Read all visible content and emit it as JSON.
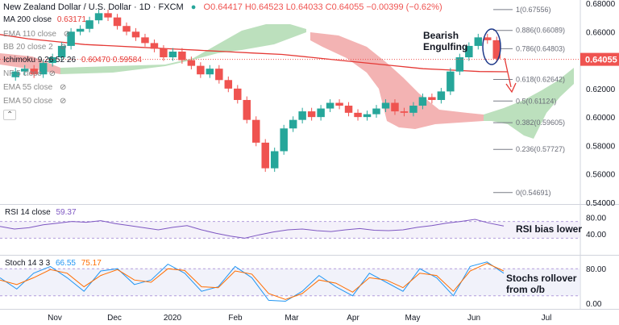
{
  "header": {
    "symbol": "New Zealand Dollar / U.S. Dollar · 1D · FXCM",
    "open": "O0.64417",
    "high": "H0.64523",
    "low": "L0.64033",
    "close": "C0.64055",
    "change": "−0.00399 (−0.62%)"
  },
  "indicators": [
    {
      "name": "MA 200 close",
      "value": "0.63171",
      "color": "#e53935",
      "hidden": false
    },
    {
      "name": "EMA 110 close",
      "value": "",
      "color": "#999999",
      "hidden": true
    },
    {
      "name": "BB 20 close 2",
      "value": "",
      "color": "#999999",
      "hidden": true
    },
    {
      "name": "Ichimoku 9 26 52 26",
      "value": "0.60470  0.59584",
      "color": "#333333",
      "hidden": false
    },
    {
      "name": "NF 5 close",
      "value": "",
      "color": "#999999",
      "hidden": true
    },
    {
      "name": "EMA 55 close",
      "value": "",
      "color": "#999999",
      "hidden": true
    },
    {
      "name": "EMA 50 close",
      "value": "",
      "color": "#999999",
      "hidden": true
    }
  ],
  "price_axis": {
    "ticks": [
      "0.68000",
      "0.66000",
      "0.64000",
      "0.62000",
      "0.60000",
      "0.58000",
      "0.56000",
      "0.54000"
    ],
    "current": "0.64055"
  },
  "fib_levels": [
    {
      "label": "1(0.67556)",
      "value": 0.67556
    },
    {
      "label": "0.886(0.66089)",
      "value": 0.66089
    },
    {
      "label": "0.786(0.64803)",
      "value": 0.64803
    },
    {
      "label": "0.618(0.62642)",
      "value": 0.62642
    },
    {
      "label": "0.5(0.61124)",
      "value": 0.61124
    },
    {
      "label": "0.382(0.59605)",
      "value": 0.59605
    },
    {
      "label": "0.236(0.57727)",
      "value": 0.57727
    },
    {
      "label": "0(0.54691)",
      "value": 0.54691
    }
  ],
  "annotations": {
    "bearish_engulfing": "Bearish\nEngulfing",
    "rsi_note": "RSI bias lower",
    "stoch_note": "Stochs rollover\nfrom o/b"
  },
  "rsi": {
    "label": "RSI 14 close",
    "value": "59.37",
    "ticks": [
      "80.00",
      "40.00"
    ],
    "line_color": "#7e57c2"
  },
  "stoch": {
    "label": "Stoch 14 3 3",
    "k": "66.55",
    "d": "75.17",
    "ticks": [
      "80.00",
      "0.00"
    ],
    "k_color": "#2196f3",
    "d_color": "#ff6d00"
  },
  "time_axis": [
    "Nov",
    "Dec",
    "2020",
    "Feb",
    "Mar",
    "Apr",
    "May",
    "Jun",
    "Jul"
  ],
  "colors": {
    "up": "#26a69a",
    "down": "#ef5350",
    "cloud_bull": "#a5d6a7",
    "cloud_bear": "#ef9a9a",
    "ma200": "#e53935",
    "fib": "#787b86"
  },
  "chart_data": {
    "type": "candlestick",
    "title": "New Zealand Dollar / U.S. Dollar · 1D · FXCM",
    "ylim": [
      0.54,
      0.68
    ],
    "x_labels": [
      "Nov",
      "Dec",
      "2020",
      "Feb",
      "Mar",
      "Apr",
      "May",
      "Jun",
      "Jul"
    ],
    "price_path": [
      0.628,
      0.632,
      0.634,
      0.63,
      0.638,
      0.642,
      0.65,
      0.66,
      0.662,
      0.668,
      0.673,
      0.67,
      0.664,
      0.66,
      0.656,
      0.652,
      0.648,
      0.642,
      0.646,
      0.64,
      0.636,
      0.63,
      0.634,
      0.626,
      0.62,
      0.612,
      0.598,
      0.582,
      0.564,
      0.576,
      0.592,
      0.598,
      0.604,
      0.6,
      0.606,
      0.61,
      0.608,
      0.603,
      0.6,
      0.602,
      0.606,
      0.61,
      0.604,
      0.603,
      0.608,
      0.614,
      0.612,
      0.618,
      0.632,
      0.642,
      0.65,
      0.656,
      0.654,
      0.641
    ],
    "ma200_path": [
      0.658,
      0.655,
      0.653,
      0.651,
      0.65,
      0.649,
      0.648,
      0.647,
      0.646,
      0.645,
      0.644,
      0.642,
      0.64,
      0.638,
      0.636,
      0.634,
      0.633,
      0.632,
      0.6318
    ],
    "rsi_path": [
      58,
      52,
      55,
      62,
      66,
      70,
      68,
      72,
      65,
      60,
      55,
      50,
      56,
      60,
      50,
      42,
      35,
      30,
      38,
      45,
      50,
      52,
      48,
      46,
      50,
      53,
      49,
      48,
      50,
      56,
      60,
      66,
      70,
      75,
      66,
      59
    ],
    "stoch_k_path": [
      60,
      35,
      70,
      85,
      60,
      30,
      75,
      80,
      45,
      55,
      90,
      70,
      30,
      40,
      85,
      60,
      10,
      8,
      30,
      65,
      40,
      20,
      70,
      50,
      30,
      80,
      60,
      20,
      85,
      95,
      70
    ],
    "stoch_d_path": [
      55,
      45,
      60,
      78,
      70,
      40,
      65,
      78,
      55,
      50,
      80,
      76,
      40,
      38,
      75,
      68,
      25,
      12,
      25,
      55,
      48,
      28,
      60,
      55,
      38,
      70,
      65,
      30,
      75,
      92,
      75
    ]
  }
}
